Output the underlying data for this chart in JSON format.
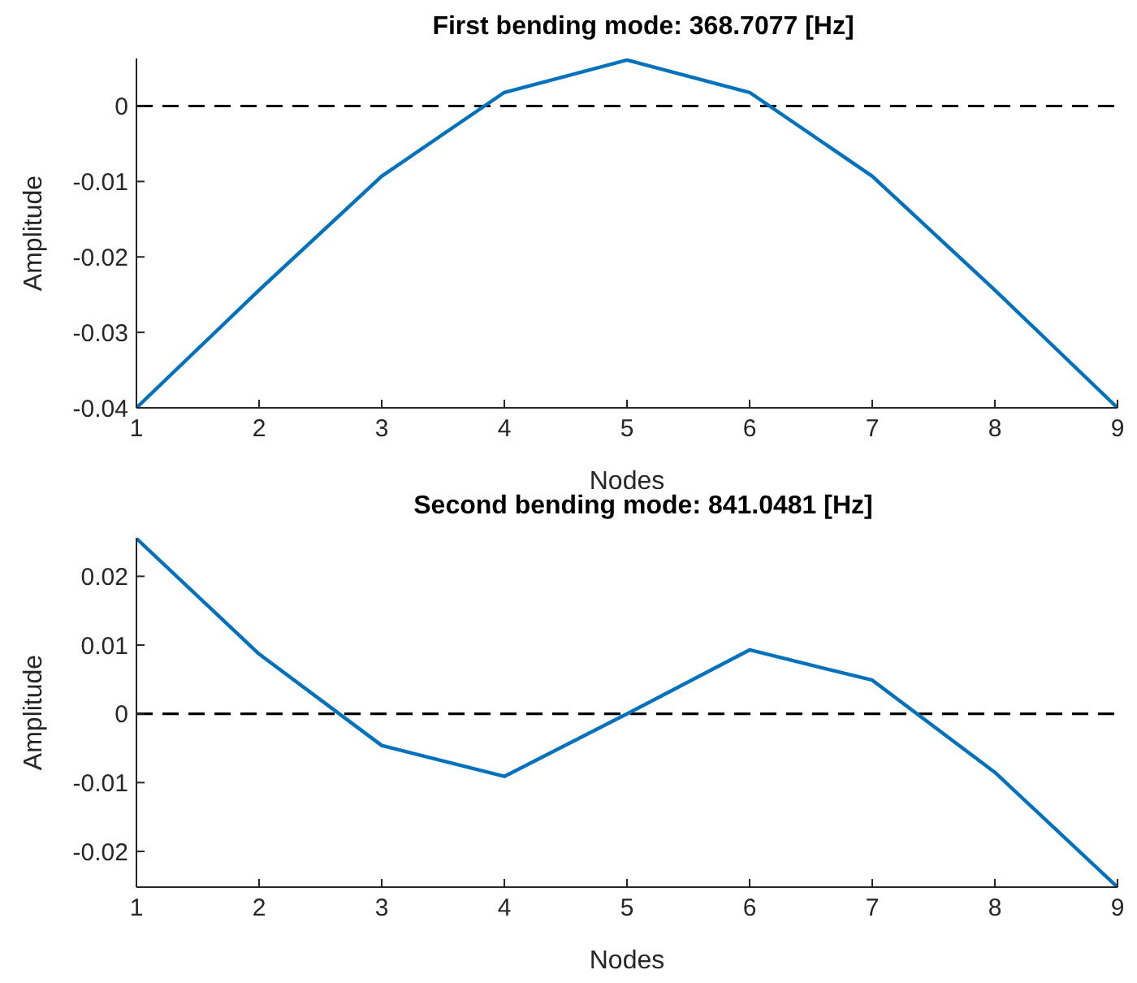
{
  "chart_data": [
    {
      "type": "line",
      "title": "First bending mode: 368.7077 [Hz]",
      "xlabel": "Nodes",
      "ylabel": "Amplitude",
      "x": [
        1,
        2,
        3,
        4,
        5,
        6,
        7,
        8,
        9
      ],
      "series": [
        {
          "color": "#0072bd",
          "values": [
            -0.04,
            -0.0244,
            -0.0093,
            0.0018,
            0.0061,
            0.0018,
            -0.0093,
            -0.0244,
            -0.04
          ]
        }
      ],
      "xlim": [
        1,
        9
      ],
      "xticks": [
        1,
        2,
        3,
        4,
        5,
        6,
        7,
        8,
        9
      ],
      "ylim": [
        -0.04,
        0.0063
      ],
      "yticks": [
        -0.04,
        -0.03,
        -0.02,
        -0.01,
        0
      ],
      "ref_lines": [
        {
          "axis": "y",
          "value": 0,
          "color": "#000000",
          "line_style": "dashed"
        }
      ]
    },
    {
      "type": "line",
      "title": "Second bending mode: 841.0481 [Hz]",
      "xlabel": "Nodes",
      "ylabel": "Amplitude",
      "x": [
        1,
        2,
        3,
        4,
        5,
        6,
        7,
        8,
        9
      ],
      "series": [
        {
          "color": "#0072bd",
          "values": [
            0.0255,
            0.0087,
            -0.0046,
            -0.0091,
            0,
            0.0093,
            0.0049,
            -0.0085,
            -0.0252
          ]
        }
      ],
      "xlim": [
        1,
        9
      ],
      "xticks": [
        1,
        2,
        3,
        4,
        5,
        6,
        7,
        8,
        9
      ],
      "ylim": [
        -0.0252,
        0.0256
      ],
      "yticks": [
        -0.02,
        -0.01,
        0,
        0.01,
        0.02
      ],
      "ref_lines": [
        {
          "axis": "y",
          "value": 0,
          "color": "#000000",
          "line_style": "dashed"
        }
      ]
    }
  ]
}
